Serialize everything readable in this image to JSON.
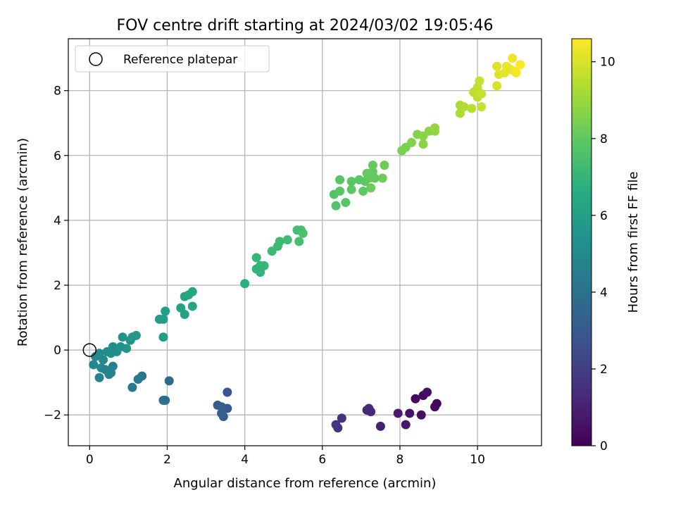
{
  "chart_data": {
    "type": "scatter",
    "title": "FOV centre drift starting at 2024/03/02 19:05:46",
    "xlabel": "Angular distance from reference (arcmin)",
    "ylabel": "Rotation from reference (arcmin)",
    "xlim": [
      -0.55,
      11.65
    ],
    "ylim": [
      -2.95,
      9.6
    ],
    "xticks": [
      0,
      2,
      4,
      6,
      8,
      10
    ],
    "yticks": [
      -2,
      0,
      2,
      4,
      6,
      8
    ],
    "grid": true,
    "legend": {
      "placement": "top-left",
      "entries": [
        "Reference platepar"
      ]
    },
    "reference_point": {
      "x": 0,
      "y": 0
    },
    "colorbar": {
      "label": "Hours from first FF file",
      "colormap": "viridis",
      "range": [
        0,
        10.6
      ],
      "ticks": [
        0,
        2,
        4,
        6,
        8,
        10
      ]
    },
    "points": [
      {
        "x": 8.4,
        "y": -1.5,
        "c": 0.2
      },
      {
        "x": 8.6,
        "y": -1.4,
        "c": 0.3
      },
      {
        "x": 8.7,
        "y": -1.3,
        "c": 0.4
      },
      {
        "x": 8.9,
        "y": -1.75,
        "c": 0.3
      },
      {
        "x": 8.95,
        "y": -1.65,
        "c": 0.2
      },
      {
        "x": 8.55,
        "y": -2.0,
        "c": 0.5
      },
      {
        "x": 8.25,
        "y": -1.95,
        "c": 0.6
      },
      {
        "x": 8.15,
        "y": -2.3,
        "c": 0.7
      },
      {
        "x": 7.95,
        "y": -1.95,
        "c": 0.8
      },
      {
        "x": 7.5,
        "y": -2.35,
        "c": 1.0
      },
      {
        "x": 7.15,
        "y": -1.85,
        "c": 1.1
      },
      {
        "x": 7.25,
        "y": -1.9,
        "c": 1.2
      },
      {
        "x": 7.2,
        "y": -1.8,
        "c": 1.3
      },
      {
        "x": 6.5,
        "y": -2.1,
        "c": 1.5
      },
      {
        "x": 6.4,
        "y": -2.4,
        "c": 1.6
      },
      {
        "x": 6.35,
        "y": -2.3,
        "c": 1.7
      },
      {
        "x": 3.55,
        "y": -1.3,
        "c": 2.8
      },
      {
        "x": 3.55,
        "y": -1.8,
        "c": 2.9
      },
      {
        "x": 3.45,
        "y": -2.05,
        "c": 3.0
      },
      {
        "x": 3.3,
        "y": -1.7,
        "c": 3.1
      },
      {
        "x": 3.4,
        "y": -1.75,
        "c": 3.2
      },
      {
        "x": 3.4,
        "y": -1.95,
        "c": 3.3
      },
      {
        "x": 2.05,
        "y": -0.95,
        "c": 3.7
      },
      {
        "x": 1.95,
        "y": -1.55,
        "c": 3.8
      },
      {
        "x": 1.9,
        "y": -1.55,
        "c": 3.9
      },
      {
        "x": 1.35,
        "y": -0.8,
        "c": 4.2
      },
      {
        "x": 1.25,
        "y": -0.9,
        "c": 4.3
      },
      {
        "x": 1.1,
        "y": -1.15,
        "c": 4.4
      },
      {
        "x": 0.55,
        "y": -0.7,
        "c": 4.6
      },
      {
        "x": 0.6,
        "y": -0.5,
        "c": 4.7
      },
      {
        "x": 0.5,
        "y": -0.75,
        "c": 4.7
      },
      {
        "x": 0.4,
        "y": -0.6,
        "c": 4.8
      },
      {
        "x": 0.25,
        "y": -0.85,
        "c": 4.8
      },
      {
        "x": 0.3,
        "y": -0.55,
        "c": 4.9
      },
      {
        "x": 0.1,
        "y": -0.45,
        "c": 5.0
      },
      {
        "x": 0.15,
        "y": -0.2,
        "c": 5.0
      },
      {
        "x": 0.25,
        "y": -0.1,
        "c": 5.1
      },
      {
        "x": 0.35,
        "y": -0.3,
        "c": 5.1
      },
      {
        "x": 0.45,
        "y": -0.05,
        "c": 5.2
      },
      {
        "x": 0.55,
        "y": -0.1,
        "c": 5.2
      },
      {
        "x": 0.6,
        "y": 0.1,
        "c": 5.3
      },
      {
        "x": 0.7,
        "y": -0.05,
        "c": 5.3
      },
      {
        "x": 0.8,
        "y": 0.1,
        "c": 5.4
      },
      {
        "x": 0.85,
        "y": 0.4,
        "c": 5.4
      },
      {
        "x": 0.95,
        "y": 0.05,
        "c": 5.5
      },
      {
        "x": 1.05,
        "y": 0.3,
        "c": 5.5
      },
      {
        "x": 1.1,
        "y": 0.4,
        "c": 5.6
      },
      {
        "x": 1.2,
        "y": 0.45,
        "c": 5.6
      },
      {
        "x": 1.9,
        "y": 0.4,
        "c": 5.8
      },
      {
        "x": 1.8,
        "y": 0.95,
        "c": 5.9
      },
      {
        "x": 1.9,
        "y": 0.95,
        "c": 5.9
      },
      {
        "x": 1.95,
        "y": 1.2,
        "c": 6.0
      },
      {
        "x": 2.35,
        "y": 1.3,
        "c": 6.1
      },
      {
        "x": 2.45,
        "y": 1.1,
        "c": 6.1
      },
      {
        "x": 2.65,
        "y": 1.35,
        "c": 6.2
      },
      {
        "x": 2.45,
        "y": 1.65,
        "c": 6.2
      },
      {
        "x": 2.55,
        "y": 1.7,
        "c": 6.3
      },
      {
        "x": 2.65,
        "y": 1.8,
        "c": 6.3
      },
      {
        "x": 4.0,
        "y": 2.05,
        "c": 6.7
      },
      {
        "x": 4.3,
        "y": 2.5,
        "c": 6.9
      },
      {
        "x": 4.4,
        "y": 2.4,
        "c": 6.9
      },
      {
        "x": 4.4,
        "y": 2.6,
        "c": 7.0
      },
      {
        "x": 4.3,
        "y": 2.85,
        "c": 7.0
      },
      {
        "x": 4.5,
        "y": 2.6,
        "c": 7.0
      },
      {
        "x": 4.7,
        "y": 3.05,
        "c": 7.2
      },
      {
        "x": 4.85,
        "y": 3.2,
        "c": 7.2
      },
      {
        "x": 4.9,
        "y": 3.35,
        "c": 7.2
      },
      {
        "x": 5.1,
        "y": 3.4,
        "c": 7.3
      },
      {
        "x": 5.35,
        "y": 3.7,
        "c": 7.4
      },
      {
        "x": 5.45,
        "y": 3.7,
        "c": 7.4
      },
      {
        "x": 5.4,
        "y": 3.35,
        "c": 7.4
      },
      {
        "x": 5.5,
        "y": 3.6,
        "c": 7.5
      },
      {
        "x": 6.3,
        "y": 4.8,
        "c": 7.7
      },
      {
        "x": 6.35,
        "y": 4.45,
        "c": 7.7
      },
      {
        "x": 6.45,
        "y": 4.9,
        "c": 7.8
      },
      {
        "x": 6.45,
        "y": 5.25,
        "c": 7.8
      },
      {
        "x": 6.6,
        "y": 4.55,
        "c": 7.8
      },
      {
        "x": 6.75,
        "y": 4.95,
        "c": 7.9
      },
      {
        "x": 6.75,
        "y": 5.2,
        "c": 7.9
      },
      {
        "x": 6.95,
        "y": 5.25,
        "c": 7.9
      },
      {
        "x": 7.05,
        "y": 4.9,
        "c": 8.0
      },
      {
        "x": 7.1,
        "y": 5.2,
        "c": 8.0
      },
      {
        "x": 7.2,
        "y": 5.3,
        "c": 8.0
      },
      {
        "x": 7.15,
        "y": 5.45,
        "c": 8.1
      },
      {
        "x": 7.3,
        "y": 5.5,
        "c": 8.1
      },
      {
        "x": 7.3,
        "y": 5.7,
        "c": 8.1
      },
      {
        "x": 7.35,
        "y": 5.3,
        "c": 8.1
      },
      {
        "x": 7.25,
        "y": 5.0,
        "c": 8.2
      },
      {
        "x": 7.55,
        "y": 5.3,
        "c": 8.2
      },
      {
        "x": 7.6,
        "y": 5.7,
        "c": 8.2
      },
      {
        "x": 8.05,
        "y": 6.15,
        "c": 8.5
      },
      {
        "x": 8.15,
        "y": 6.25,
        "c": 8.5
      },
      {
        "x": 8.3,
        "y": 6.4,
        "c": 8.6
      },
      {
        "x": 8.45,
        "y": 6.65,
        "c": 8.6
      },
      {
        "x": 8.6,
        "y": 6.6,
        "c": 8.7
      },
      {
        "x": 8.6,
        "y": 6.35,
        "c": 8.7
      },
      {
        "x": 8.75,
        "y": 6.75,
        "c": 8.8
      },
      {
        "x": 8.9,
        "y": 6.75,
        "c": 8.8
      },
      {
        "x": 8.9,
        "y": 6.85,
        "c": 8.9
      },
      {
        "x": 9.55,
        "y": 7.3,
        "c": 9.3
      },
      {
        "x": 9.55,
        "y": 7.55,
        "c": 9.3
      },
      {
        "x": 9.65,
        "y": 7.5,
        "c": 9.4
      },
      {
        "x": 9.85,
        "y": 7.45,
        "c": 9.5
      },
      {
        "x": 9.9,
        "y": 7.95,
        "c": 9.5
      },
      {
        "x": 10.0,
        "y": 8.1,
        "c": 9.6
      },
      {
        "x": 10.0,
        "y": 7.8,
        "c": 9.6
      },
      {
        "x": 10.05,
        "y": 8.3,
        "c": 9.7
      },
      {
        "x": 10.1,
        "y": 7.9,
        "c": 9.7
      },
      {
        "x": 10.1,
        "y": 7.5,
        "c": 9.7
      },
      {
        "x": 10.5,
        "y": 8.15,
        "c": 10.0
      },
      {
        "x": 10.5,
        "y": 8.75,
        "c": 10.1
      },
      {
        "x": 10.55,
        "y": 8.5,
        "c": 10.1
      },
      {
        "x": 10.7,
        "y": 8.55,
        "c": 10.2
      },
      {
        "x": 10.75,
        "y": 8.75,
        "c": 10.3
      },
      {
        "x": 10.85,
        "y": 8.65,
        "c": 10.3
      },
      {
        "x": 10.9,
        "y": 9.0,
        "c": 10.4
      },
      {
        "x": 10.95,
        "y": 8.6,
        "c": 10.4
      },
      {
        "x": 11.0,
        "y": 8.55,
        "c": 10.5
      },
      {
        "x": 11.1,
        "y": 8.8,
        "c": 10.6
      }
    ]
  }
}
